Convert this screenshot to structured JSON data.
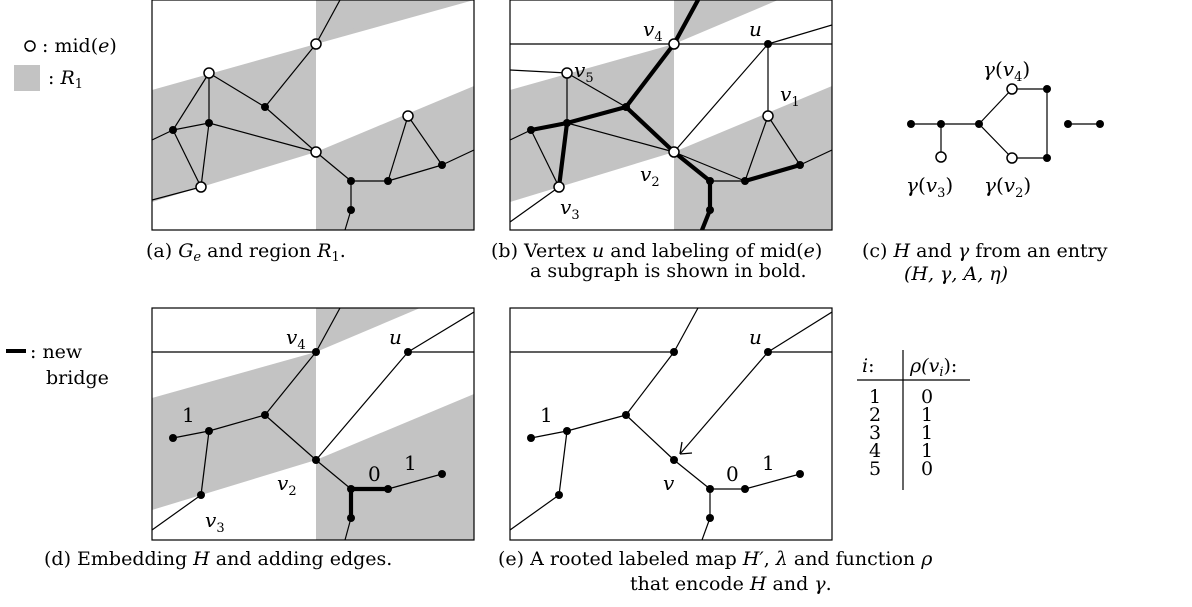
{
  "legend": {
    "mid_symbol": ": mid(",
    "mid_var": "e",
    "mid_close": ")",
    "region_symbol": ": ",
    "region_name": "R",
    "region_sub": "1",
    "bridge_label_1": ": new",
    "bridge_label_2": "bridge"
  },
  "colors": {
    "region_fill": "#c3c3c3",
    "stroke": "#000000",
    "white_vertex": "#ffffff"
  },
  "panel_b": {
    "u": "u",
    "v": "v",
    "sub1": "1",
    "sub2": "2",
    "sub3": "3",
    "sub4": "4",
    "sub5": "5"
  },
  "panel_c": {
    "gamma": "γ",
    "v": "v",
    "sub4": "4",
    "sub3": "3",
    "sub2": "2"
  },
  "panel_d": {
    "u": "u",
    "v": "v",
    "sub4": "4",
    "sub2": "2",
    "sub3": "3",
    "label_1a": "1",
    "label_0": "0",
    "label_1b": "1"
  },
  "panel_e": {
    "u": "u",
    "v": "v",
    "label_1a": "1",
    "label_0": "0",
    "label_1b": "1"
  },
  "table": {
    "header_i": "i",
    "header_rho": "ρ(v",
    "header_rho_sub": "i",
    "header_close": "):",
    "colon": ":",
    "rows": [
      {
        "i": "1",
        "rho": "0"
      },
      {
        "i": "2",
        "rho": "1"
      },
      {
        "i": "3",
        "rho": "1"
      },
      {
        "i": "4",
        "rho": "1"
      },
      {
        "i": "5",
        "rho": "0"
      }
    ]
  },
  "captions": {
    "a_prefix": "(a) ",
    "a_g": "G",
    "a_g_sub": "e",
    "a_rest": " and region ",
    "a_r": "R",
    "a_r_sub": "1",
    "a_end": ".",
    "b_line1_prefix": "(b) Vertex ",
    "b_line1_u": "u",
    "b_line1_rest": " and labeling of mid(",
    "b_line1_e": "e",
    "b_line1_close": ")",
    "b_line2": "a subgraph is shown in bold.",
    "c_line1_prefix": "(c) ",
    "c_line1_h": "H",
    "c_line1_and": " and ",
    "c_line1_gamma": "γ",
    "c_line1_rest": " from an entry",
    "c_line2": "(H, γ, A, η)",
    "d_prefix": "(d) Embedding ",
    "d_h": "H",
    "d_rest": " and adding edges.",
    "e_line1_prefix": "(e) A rooted labeled map ",
    "e_line1_h": "H′",
    "e_line1_comma": ", ",
    "e_line1_lambda": "λ",
    "e_line1_rest": " and function ",
    "e_line1_rho": "ρ",
    "e_line2_prefix": "that encode ",
    "e_line2_h": "H",
    "e_line2_and": " and ",
    "e_line2_gamma": "γ",
    "e_line2_end": "."
  }
}
